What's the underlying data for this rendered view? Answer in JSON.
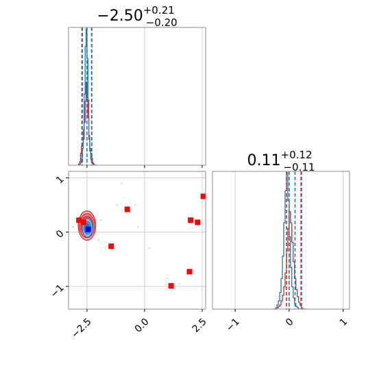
{
  "chart_data": {
    "type": "corner",
    "colors": {
      "primary": "#1f77b4",
      "secondary": "#d62728",
      "true_marker": "#0000ff",
      "extra_marker": "#ff0000",
      "grid": "#d0d0d0"
    },
    "param1": {
      "title_main": "−2.50",
      "title_plus": "+0.21",
      "title_minus": "−0.20",
      "median": -2.5,
      "interval": [
        -2.7,
        -2.29
      ],
      "secondary_interval": [
        -2.72,
        -2.3
      ],
      "xlim": [
        -3.3,
        2.65
      ],
      "ticks": [
        -2.5,
        0.0,
        2.5
      ],
      "tick_labels": [
        "−2.5",
        "0.0",
        "2.5"
      ]
    },
    "param2": {
      "title_main": "0.11",
      "title_plus": "+0.12",
      "title_minus": "−0.11",
      "median": 0.11,
      "interval": [
        0.0,
        0.23
      ],
      "secondary_interval": [
        -0.05,
        0.22
      ],
      "xlim": [
        -1.42,
        1.12
      ],
      "ticks": [
        -1,
        0,
        1
      ],
      "tick_labels": [
        "−1",
        "0",
        "1"
      ]
    },
    "hist1_primary": {
      "bin_start": -2.9,
      "bin_width": 0.04,
      "counts": [
        0,
        0,
        1,
        2,
        6,
        14,
        30,
        60,
        100,
        115,
        90,
        55,
        25,
        12,
        5,
        2,
        1,
        0,
        0,
        0
      ]
    },
    "hist1_secondary": {
      "bin_start": -2.9,
      "bin_width": 0.04,
      "counts": [
        0,
        1,
        3,
        10,
        16,
        18,
        22,
        36,
        54,
        70,
        57,
        40,
        22,
        14,
        10,
        6,
        2,
        1,
        0,
        0
      ]
    },
    "hist2_primary": {
      "bin_start": -0.3,
      "bin_width": 0.025,
      "counts": [
        0,
        0,
        1,
        3,
        6,
        12,
        22,
        38,
        62,
        85,
        98,
        78,
        52,
        30,
        16,
        8,
        4,
        2,
        1,
        0,
        0,
        0,
        0,
        0
      ]
    },
    "hist2_secondary": {
      "bin_start": -0.3,
      "bin_width": 0.025,
      "counts": [
        0,
        0,
        0,
        1,
        2,
        3,
        6,
        10,
        16,
        26,
        42,
        58,
        70,
        62,
        48,
        34,
        22,
        14,
        9,
        5,
        3,
        1,
        0,
        0
      ]
    },
    "joint": {
      "true_point": [
        -2.45,
        0.05
      ],
      "primary_center": [
        -2.48,
        0.08
      ],
      "secondary_center": [
        -2.5,
        0.12
      ],
      "extra_points": [
        [
          -2.85,
          0.22
        ],
        [
          -2.65,
          0.18
        ],
        [
          -1.45,
          -0.26
        ],
        [
          -0.75,
          0.42
        ],
        [
          1.15,
          -0.99
        ],
        [
          1.95,
          -0.73
        ],
        [
          2.0,
          0.22
        ],
        [
          2.3,
          0.18
        ],
        [
          2.55,
          0.66
        ]
      ],
      "scatter_points": [
        [
          -1.9,
          0.22
        ],
        [
          -1.2,
          0.5
        ],
        [
          -0.4,
          0.5
        ],
        [
          -0.3,
          0.1
        ],
        [
          0.2,
          -0.3
        ],
        [
          1.0,
          -0.85
        ],
        [
          1.5,
          -0.95
        ],
        [
          -3.1,
          0.1
        ],
        [
          -2.0,
          -0.15
        ],
        [
          -1.0,
          0.9
        ]
      ]
    }
  }
}
